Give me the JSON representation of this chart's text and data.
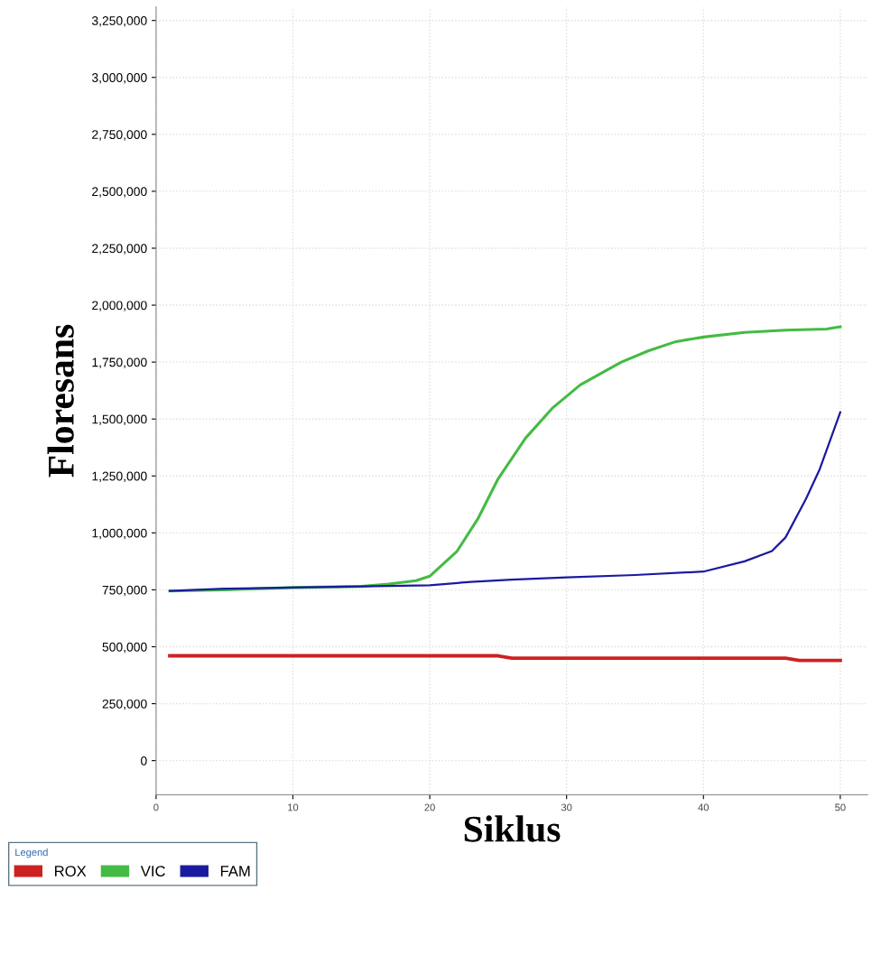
{
  "chart_data": {
    "type": "line",
    "xlabel": "Siklus",
    "ylabel": "Floresans",
    "legend_title": "Legend",
    "legend": "bottom",
    "grid": true,
    "marker": "none",
    "line_style": "solid",
    "xlim": [
      0,
      52
    ],
    "xticks": [
      0,
      10,
      20,
      30,
      40,
      50
    ],
    "ylim": [
      -150000,
      3310000
    ],
    "yticks": [
      {
        "value": 0,
        "label": "0"
      },
      {
        "value": 250000,
        "label": "250,000"
      },
      {
        "value": 500000,
        "label": "500,000"
      },
      {
        "value": 750000,
        "label": "750,000"
      },
      {
        "value": 1000000,
        "label": "1,000,000"
      },
      {
        "value": 1250000,
        "label": "1,250,000"
      },
      {
        "value": 1500000,
        "label": "1,500,000"
      },
      {
        "value": 1750000,
        "label": "1,750,000"
      },
      {
        "value": 2000000,
        "label": "2,000,000"
      },
      {
        "value": 2250000,
        "label": "2,250,000"
      },
      {
        "value": 2500000,
        "label": "2,500,000"
      },
      {
        "value": 2750000,
        "label": "2,750,000"
      },
      {
        "value": 3000000,
        "label": "3,000,000"
      },
      {
        "value": 3250000,
        "label": "3,250,000"
      }
    ],
    "series": [
      {
        "name": "ROX",
        "color": "#cc2222",
        "x": [
          1,
          10,
          20,
          25,
          26,
          35,
          46,
          47,
          50
        ],
        "values": [
          460000,
          460000,
          460000,
          460000,
          450000,
          450000,
          450000,
          440000,
          440000
        ]
      },
      {
        "name": "VIC",
        "color": "#44bb44",
        "x": [
          1,
          5,
          10,
          15,
          17,
          19,
          20,
          22,
          23.5,
          25,
          27,
          29,
          31,
          34,
          36,
          38,
          40,
          43,
          46,
          49,
          50
        ],
        "values": [
          745000,
          750000,
          760000,
          765000,
          775000,
          790000,
          810000,
          920000,
          1060000,
          1238000,
          1416000,
          1550000,
          1650000,
          1750000,
          1800000,
          1840000,
          1860000,
          1880000,
          1890000,
          1895000,
          1905000
        ]
      },
      {
        "name": "FAM",
        "color": "#1a1aa0",
        "x": [
          1,
          5,
          10,
          15,
          20,
          23,
          26,
          30,
          35,
          40,
          43,
          45,
          46,
          47.5,
          48.5,
          50
        ],
        "values": [
          745000,
          755000,
          760000,
          765000,
          770000,
          785000,
          795000,
          805000,
          815000,
          830000,
          875000,
          920000,
          980000,
          1150000,
          1280000,
          1530000
        ]
      }
    ]
  }
}
